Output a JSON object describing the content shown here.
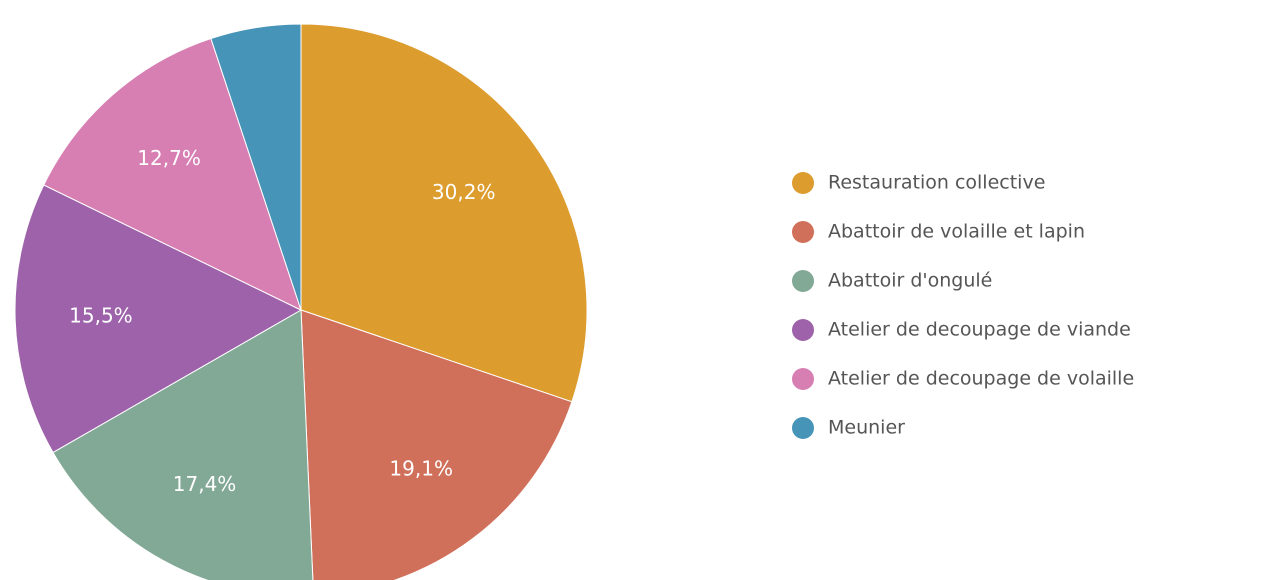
{
  "chart_data": {
    "type": "pie",
    "categories": [
      "Restauration collective",
      "Abattoir de volaille et lapin",
      "Abattoir d'ongulé",
      "Atelier de decoupage de viande",
      "Atelier de decoupage de volaille",
      "Meunier"
    ],
    "values": [
      30.2,
      19.1,
      17.4,
      15.5,
      12.7,
      5.1
    ],
    "value_labels": [
      "30,2%",
      "19,1%",
      "17,4%",
      "15,5%",
      "12,7%",
      null
    ],
    "colors": [
      "#dd9c2e",
      "#d0705a",
      "#82a896",
      "#9d62aa",
      "#d77fb3",
      "#4694b8"
    ]
  }
}
